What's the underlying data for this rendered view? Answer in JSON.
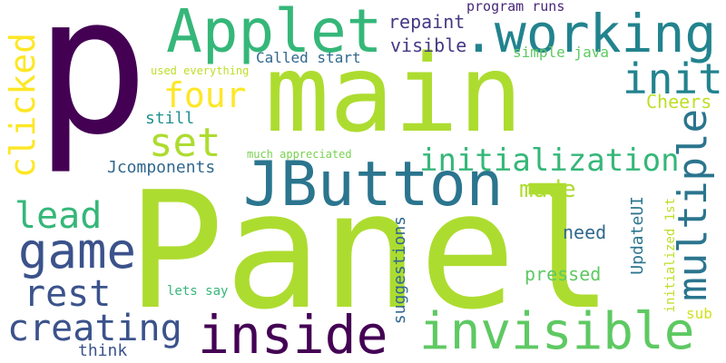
{
  "words": [
    {
      "text": "p",
      "color": "#440154"
    },
    {
      "text": "Panel",
      "color": "#addc30"
    },
    {
      "text": "main",
      "color": "#addc30"
    },
    {
      "text": "Applet",
      "color": "#35b779"
    },
    {
      "text": ".working",
      "color": "#22838e"
    },
    {
      "text": "JButton",
      "color": "#2b758e"
    },
    {
      "text": "inside",
      "color": "#440154"
    },
    {
      "text": "invisible",
      "color": "#5ec962"
    },
    {
      "text": "game",
      "color": "#3b528b"
    },
    {
      "text": "set",
      "color": "#addc30"
    },
    {
      "text": "four",
      "color": "#fde725"
    },
    {
      "text": "init",
      "color": "#22838e"
    },
    {
      "text": "multiple",
      "color": "#2b758e"
    },
    {
      "text": "initialization",
      "color": "#35b779"
    },
    {
      "text": "clicked",
      "color": "#fde725"
    },
    {
      "text": "lead",
      "color": "#35b779"
    },
    {
      "text": "rest",
      "color": "#3b528b"
    },
    {
      "text": "creating",
      "color": "#3b528b"
    },
    {
      "text": "made",
      "color": "#addc30"
    },
    {
      "text": "repaint",
      "color": "#443983"
    },
    {
      "text": "visible",
      "color": "#443983"
    },
    {
      "text": "program runs",
      "color": "#482878"
    },
    {
      "text": "simple java",
      "color": "#5ec962"
    },
    {
      "text": "Called start",
      "color": "#31688e"
    },
    {
      "text": "used everything",
      "color": "#bddf26"
    },
    {
      "text": "Cheers",
      "color": "#bddf26"
    },
    {
      "text": "still",
      "color": "#21918c"
    },
    {
      "text": "much appreciated",
      "color": "#7ad151"
    },
    {
      "text": "Jcomponents",
      "color": "#31688e"
    },
    {
      "text": "need",
      "color": "#31688e"
    },
    {
      "text": "UpdateUI",
      "color": "#2b758e"
    },
    {
      "text": "initialized 1st",
      "color": "#bddf26"
    },
    {
      "text": "suggestions",
      "color": "#31688e"
    },
    {
      "text": "pressed",
      "color": "#5ec962"
    },
    {
      "text": "lets say",
      "color": "#35b779"
    },
    {
      "text": "sub",
      "color": "#d2e21b"
    },
    {
      "text": "think",
      "color": "#3b528b"
    }
  ]
}
